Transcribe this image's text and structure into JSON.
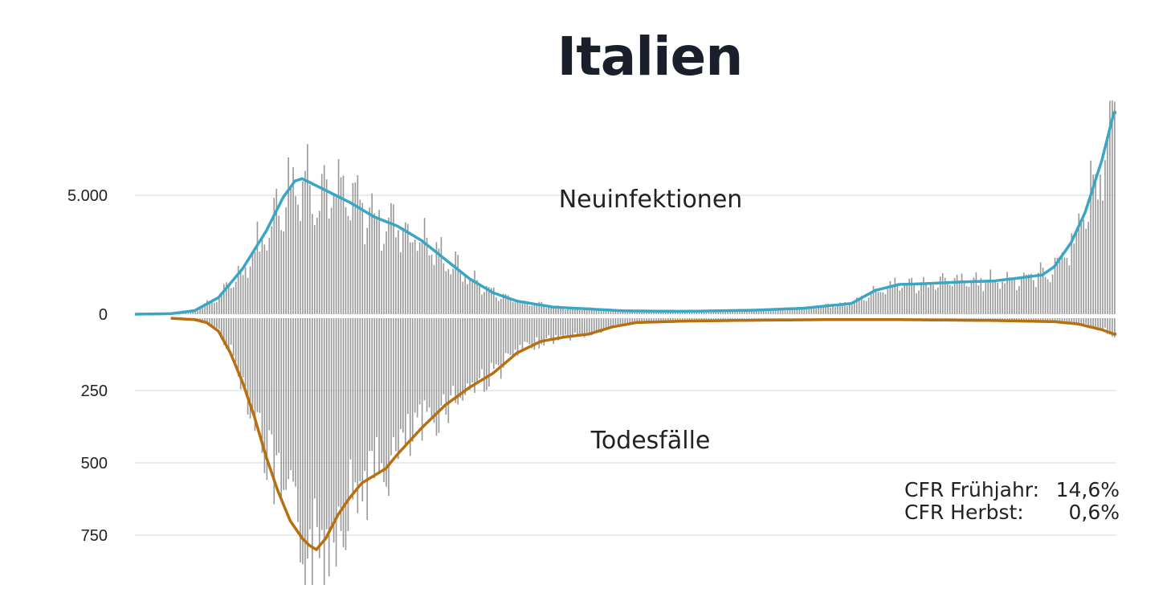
{
  "title": "Italien",
  "chart_data": {
    "type": "bar",
    "description_series": "diverging daily bars with 7-day average lines",
    "x_unit": "day",
    "upper": {
      "name": "Neuinfektionen",
      "axis_ticks": [
        {
          "value": 0,
          "label": "0"
        },
        {
          "value": 5000,
          "label": "5.000"
        }
      ],
      "ylim": [
        0,
        9000
      ],
      "bar_color": "#999999",
      "line_color": "#3aa6c6",
      "anchors": [
        [
          0,
          0
        ],
        [
          15,
          20
        ],
        [
          25,
          150
        ],
        [
          35,
          700
        ],
        [
          45,
          1900
        ],
        [
          55,
          3500
        ],
        [
          62,
          4900
        ],
        [
          67,
          5600
        ],
        [
          70,
          5700
        ],
        [
          74,
          5500
        ],
        [
          80,
          5200
        ],
        [
          90,
          4700
        ],
        [
          100,
          4100
        ],
        [
          110,
          3700
        ],
        [
          120,
          3100
        ],
        [
          130,
          2300
        ],
        [
          140,
          1500
        ],
        [
          150,
          900
        ],
        [
          160,
          550
        ],
        [
          175,
          300
        ],
        [
          190,
          220
        ],
        [
          205,
          140
        ],
        [
          230,
          120
        ],
        [
          260,
          170
        ],
        [
          280,
          250
        ],
        [
          300,
          450
        ],
        [
          310,
          1000
        ],
        [
          320,
          1250
        ],
        [
          330,
          1280
        ],
        [
          345,
          1350
        ],
        [
          360,
          1400
        ],
        [
          370,
          1520
        ],
        [
          380,
          1650
        ],
        [
          385,
          2000
        ],
        [
          392,
          3000
        ],
        [
          398,
          4300
        ],
        [
          405,
          6500
        ],
        [
          410,
          8500
        ]
      ]
    },
    "lower": {
      "name": "Todesfälle",
      "axis_ticks": [
        {
          "value": 0,
          "label": "0"
        },
        {
          "value": 250,
          "label": "250"
        },
        {
          "value": 500,
          "label": "500"
        },
        {
          "value": 750,
          "label": "750"
        }
      ],
      "ylim": [
        0,
        900
      ],
      "bar_color": "#999999",
      "line_color": "#b86f10",
      "anchors": [
        [
          0,
          0
        ],
        [
          15,
          0
        ],
        [
          25,
          5
        ],
        [
          30,
          15
        ],
        [
          35,
          45
        ],
        [
          40,
          120
        ],
        [
          45,
          220
        ],
        [
          50,
          340
        ],
        [
          55,
          480
        ],
        [
          60,
          600
        ],
        [
          65,
          700
        ],
        [
          70,
          760
        ],
        [
          73,
          785
        ],
        [
          76,
          800
        ],
        [
          80,
          760
        ],
        [
          85,
          680
        ],
        [
          90,
          620
        ],
        [
          95,
          570
        ],
        [
          100,
          545
        ],
        [
          105,
          520
        ],
        [
          110,
          470
        ],
        [
          120,
          380
        ],
        [
          130,
          300
        ],
        [
          140,
          240
        ],
        [
          150,
          190
        ],
        [
          160,
          120
        ],
        [
          170,
          80
        ],
        [
          180,
          65
        ],
        [
          190,
          55
        ],
        [
          200,
          30
        ],
        [
          210,
          15
        ],
        [
          230,
          10
        ],
        [
          260,
          7
        ],
        [
          290,
          5
        ],
        [
          320,
          5
        ],
        [
          360,
          8
        ],
        [
          385,
          12
        ],
        [
          395,
          20
        ],
        [
          405,
          40
        ],
        [
          410,
          55
        ]
      ]
    },
    "n_days": 411
  },
  "annotations": {
    "cfr_spring_label": "CFR Frühjahr:",
    "cfr_spring_value": "14,6%",
    "cfr_autumn_label": "CFR Herbst:",
    "cfr_autumn_value": "0,6%"
  }
}
